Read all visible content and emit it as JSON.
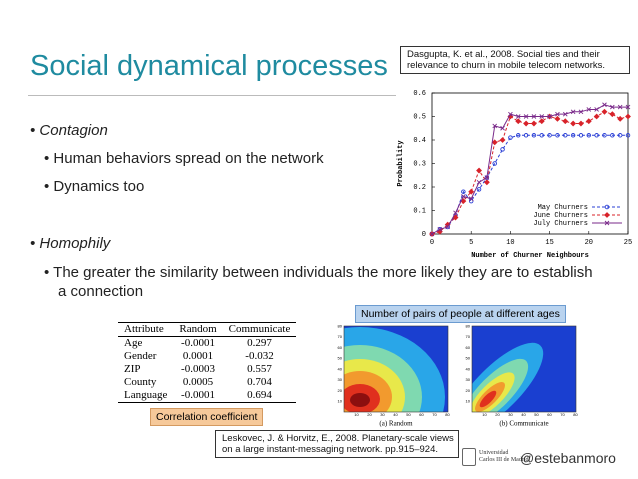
{
  "slide": {
    "title": "Social dynamical processes",
    "bullets": [
      {
        "text": "Contagion",
        "sub": [
          "Human behaviors spread on the network",
          "Dynamics too"
        ]
      },
      {
        "text": "Homophily",
        "sub": [
          "The greater the similarity between individuals the more likely they are to establish a connection"
        ]
      }
    ],
    "handle": "@estebanmoro",
    "logo": [
      "Universidad",
      "Carlos III de Madrid"
    ]
  },
  "citation_top": "Dasgupta, K. et al., 2008. Social ties and their relevance to churn in mobile telecom networks.",
  "chart_data": {
    "type": "line",
    "x_label": "Number of Churner Neighbours",
    "y_label": "Probability",
    "x": [
      0,
      1,
      2,
      3,
      4,
      5,
      6,
      7,
      8,
      9,
      10,
      11,
      12,
      13,
      14,
      15,
      16,
      17,
      18,
      19,
      20,
      21,
      22,
      23,
      24,
      25
    ],
    "series": [
      {
        "name": "May Churners",
        "color": "#2a3fd6",
        "marker": "circle",
        "dash": true,
        "values": [
          0,
          0.02,
          0.03,
          0.08,
          0.18,
          0.14,
          0.19,
          0.24,
          0.3,
          0.36,
          0.41,
          0.42,
          0.42,
          0.42,
          0.42,
          0.42,
          0.42,
          0.42,
          0.42,
          0.42,
          0.42,
          0.42,
          0.42,
          0.42,
          0.42,
          0.42
        ]
      },
      {
        "name": "June Churners",
        "color": "#d8232a",
        "marker": "diamond",
        "dash": true,
        "values": [
          0,
          0.01,
          0.04,
          0.07,
          0.14,
          0.18,
          0.27,
          0.22,
          0.39,
          0.4,
          0.5,
          0.48,
          0.47,
          0.47,
          0.48,
          0.5,
          0.49,
          0.48,
          0.47,
          0.47,
          0.48,
          0.5,
          0.52,
          0.51,
          0.49,
          0.5
        ]
      },
      {
        "name": "July Churners",
        "color": "#7a2a8a",
        "marker": "cross",
        "dash": false,
        "values": [
          0,
          0.02,
          0.03,
          0.09,
          0.16,
          0.15,
          0.22,
          0.24,
          0.46,
          0.45,
          0.51,
          0.5,
          0.5,
          0.5,
          0.5,
          0.5,
          0.51,
          0.51,
          0.52,
          0.52,
          0.53,
          0.53,
          0.55,
          0.54,
          0.54,
          0.54
        ]
      }
    ],
    "xlim": [
      0,
      25
    ],
    "xticks": [
      0,
      5,
      10,
      15,
      20,
      25
    ],
    "ylim": [
      0,
      0.6
    ],
    "yticks": [
      0,
      0.1,
      0.2,
      0.3,
      0.4,
      0.5,
      0.6
    ],
    "legend": "lower-right"
  },
  "table": {
    "header": [
      "Attribute",
      "Random",
      "Communicate"
    ],
    "rows": [
      [
        "Age",
        "-0.0001",
        "0.297"
      ],
      [
        "Gender",
        "0.0001",
        "-0.032"
      ],
      [
        "ZIP",
        "-0.0003",
        "0.557"
      ],
      [
        "County",
        "0.0005",
        "0.704"
      ],
      [
        "Language",
        "-0.0001",
        "0.694"
      ]
    ]
  },
  "table_note": "Correlation coefficient",
  "heatmaps": {
    "title": "Number of pairs of people at different ages",
    "ticks": [
      10,
      20,
      30,
      40,
      50,
      60,
      70,
      80
    ],
    "captions": [
      "(a) Random",
      "(b) Communicate"
    ]
  },
  "citation_bottom": "Leskovec, J. & Horvitz, E., 2008. Planetary-scale views on a large instant-messaging network. pp.915–924."
}
